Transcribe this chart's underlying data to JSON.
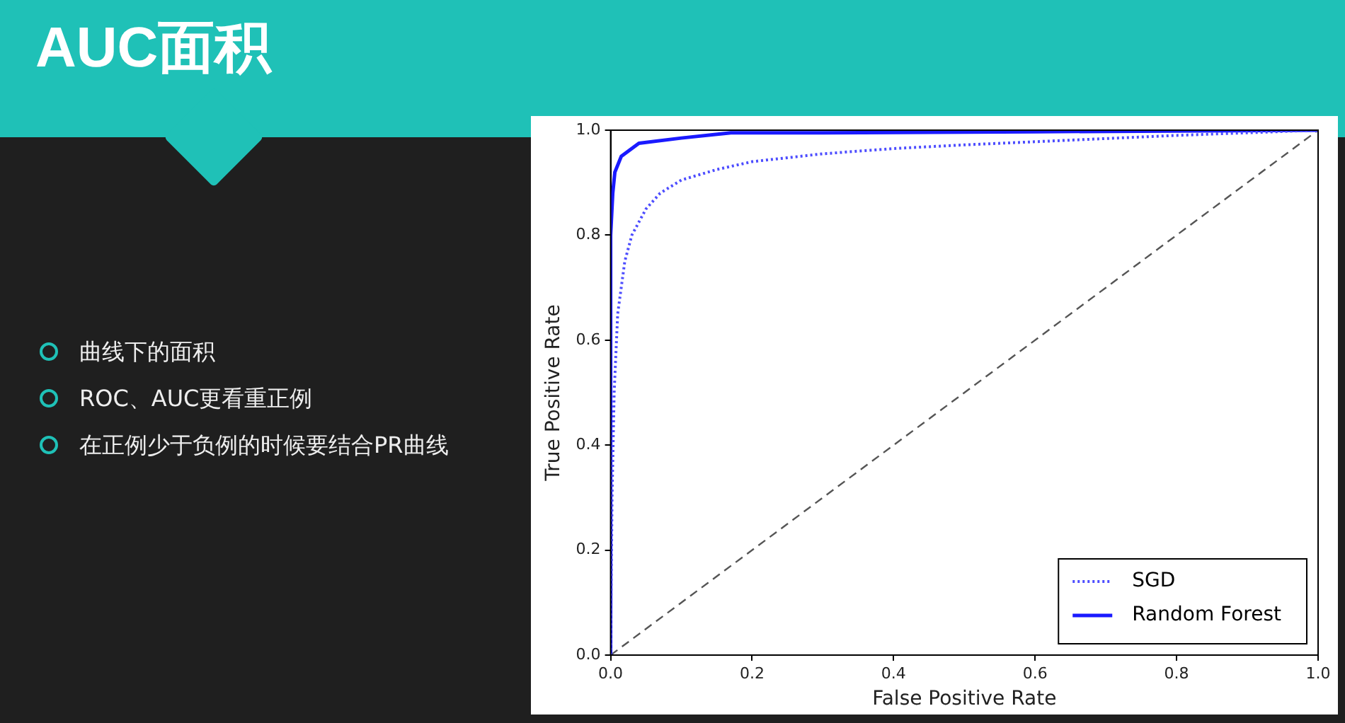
{
  "chart_data": {
    "type": "line",
    "title": "AUC面积",
    "xlabel": "False Positive Rate",
    "ylabel": "True Positive Rate",
    "annotations": [
      "曲线下的面积",
      "ROC、AUC更看重正例",
      "在正例少于负例的时候要结合PR曲线"
    ],
    "xlim": [
      0,
      1
    ],
    "ylim": [
      0,
      1
    ],
    "xticks": [
      {
        "value": 0,
        "label": "0.0"
      },
      {
        "value": 0.2,
        "label": "0.2"
      },
      {
        "value": 0.4,
        "label": "0.4"
      },
      {
        "value": 0.6,
        "label": "0.6"
      },
      {
        "value": 0.8,
        "label": "0.8"
      },
      {
        "value": 1,
        "label": "1.0"
      }
    ],
    "yticks": [
      {
        "value": 0,
        "label": "0.0"
      },
      {
        "value": 0.2,
        "label": "0.2"
      },
      {
        "value": 0.4,
        "label": "0.4"
      },
      {
        "value": 0.6,
        "label": "0.6"
      },
      {
        "value": 0.8,
        "label": "0.8"
      },
      {
        "value": 1,
        "label": "1.0"
      }
    ],
    "grid": false,
    "legend": "bottom right",
    "marker": "none",
    "series": [
      {
        "name": "SGD",
        "color": "#4d4dff",
        "line_style": "dotted",
        "x": [
          0,
          0.002,
          0.005,
          0.01,
          0.02,
          0.03,
          0.05,
          0.07,
          0.1,
          0.15,
          0.2,
          0.3,
          0.4,
          0.5,
          0.6,
          0.7,
          0.8,
          0.9,
          1
        ],
        "values": [
          0,
          0.3,
          0.5,
          0.65,
          0.75,
          0.8,
          0.85,
          0.88,
          0.905,
          0.925,
          0.94,
          0.955,
          0.965,
          0.972,
          0.978,
          0.984,
          0.99,
          0.995,
          1
        ]
      },
      {
        "name": "Random Forest",
        "color": "#1a1aff",
        "line_style": "solid",
        "x": [
          0,
          0,
          0.003,
          0.006,
          0.015,
          0.04,
          0.1,
          0.17,
          0.3,
          0.6,
          1
        ],
        "values": [
          0,
          0.8,
          0.88,
          0.92,
          0.95,
          0.975,
          0.985,
          0.995,
          0.995,
          0.997,
          1
        ]
      },
      {
        "color": "#555555",
        "line_style": "dashed",
        "x": [
          0,
          1
        ],
        "values": [
          0,
          1
        ]
      }
    ]
  }
}
